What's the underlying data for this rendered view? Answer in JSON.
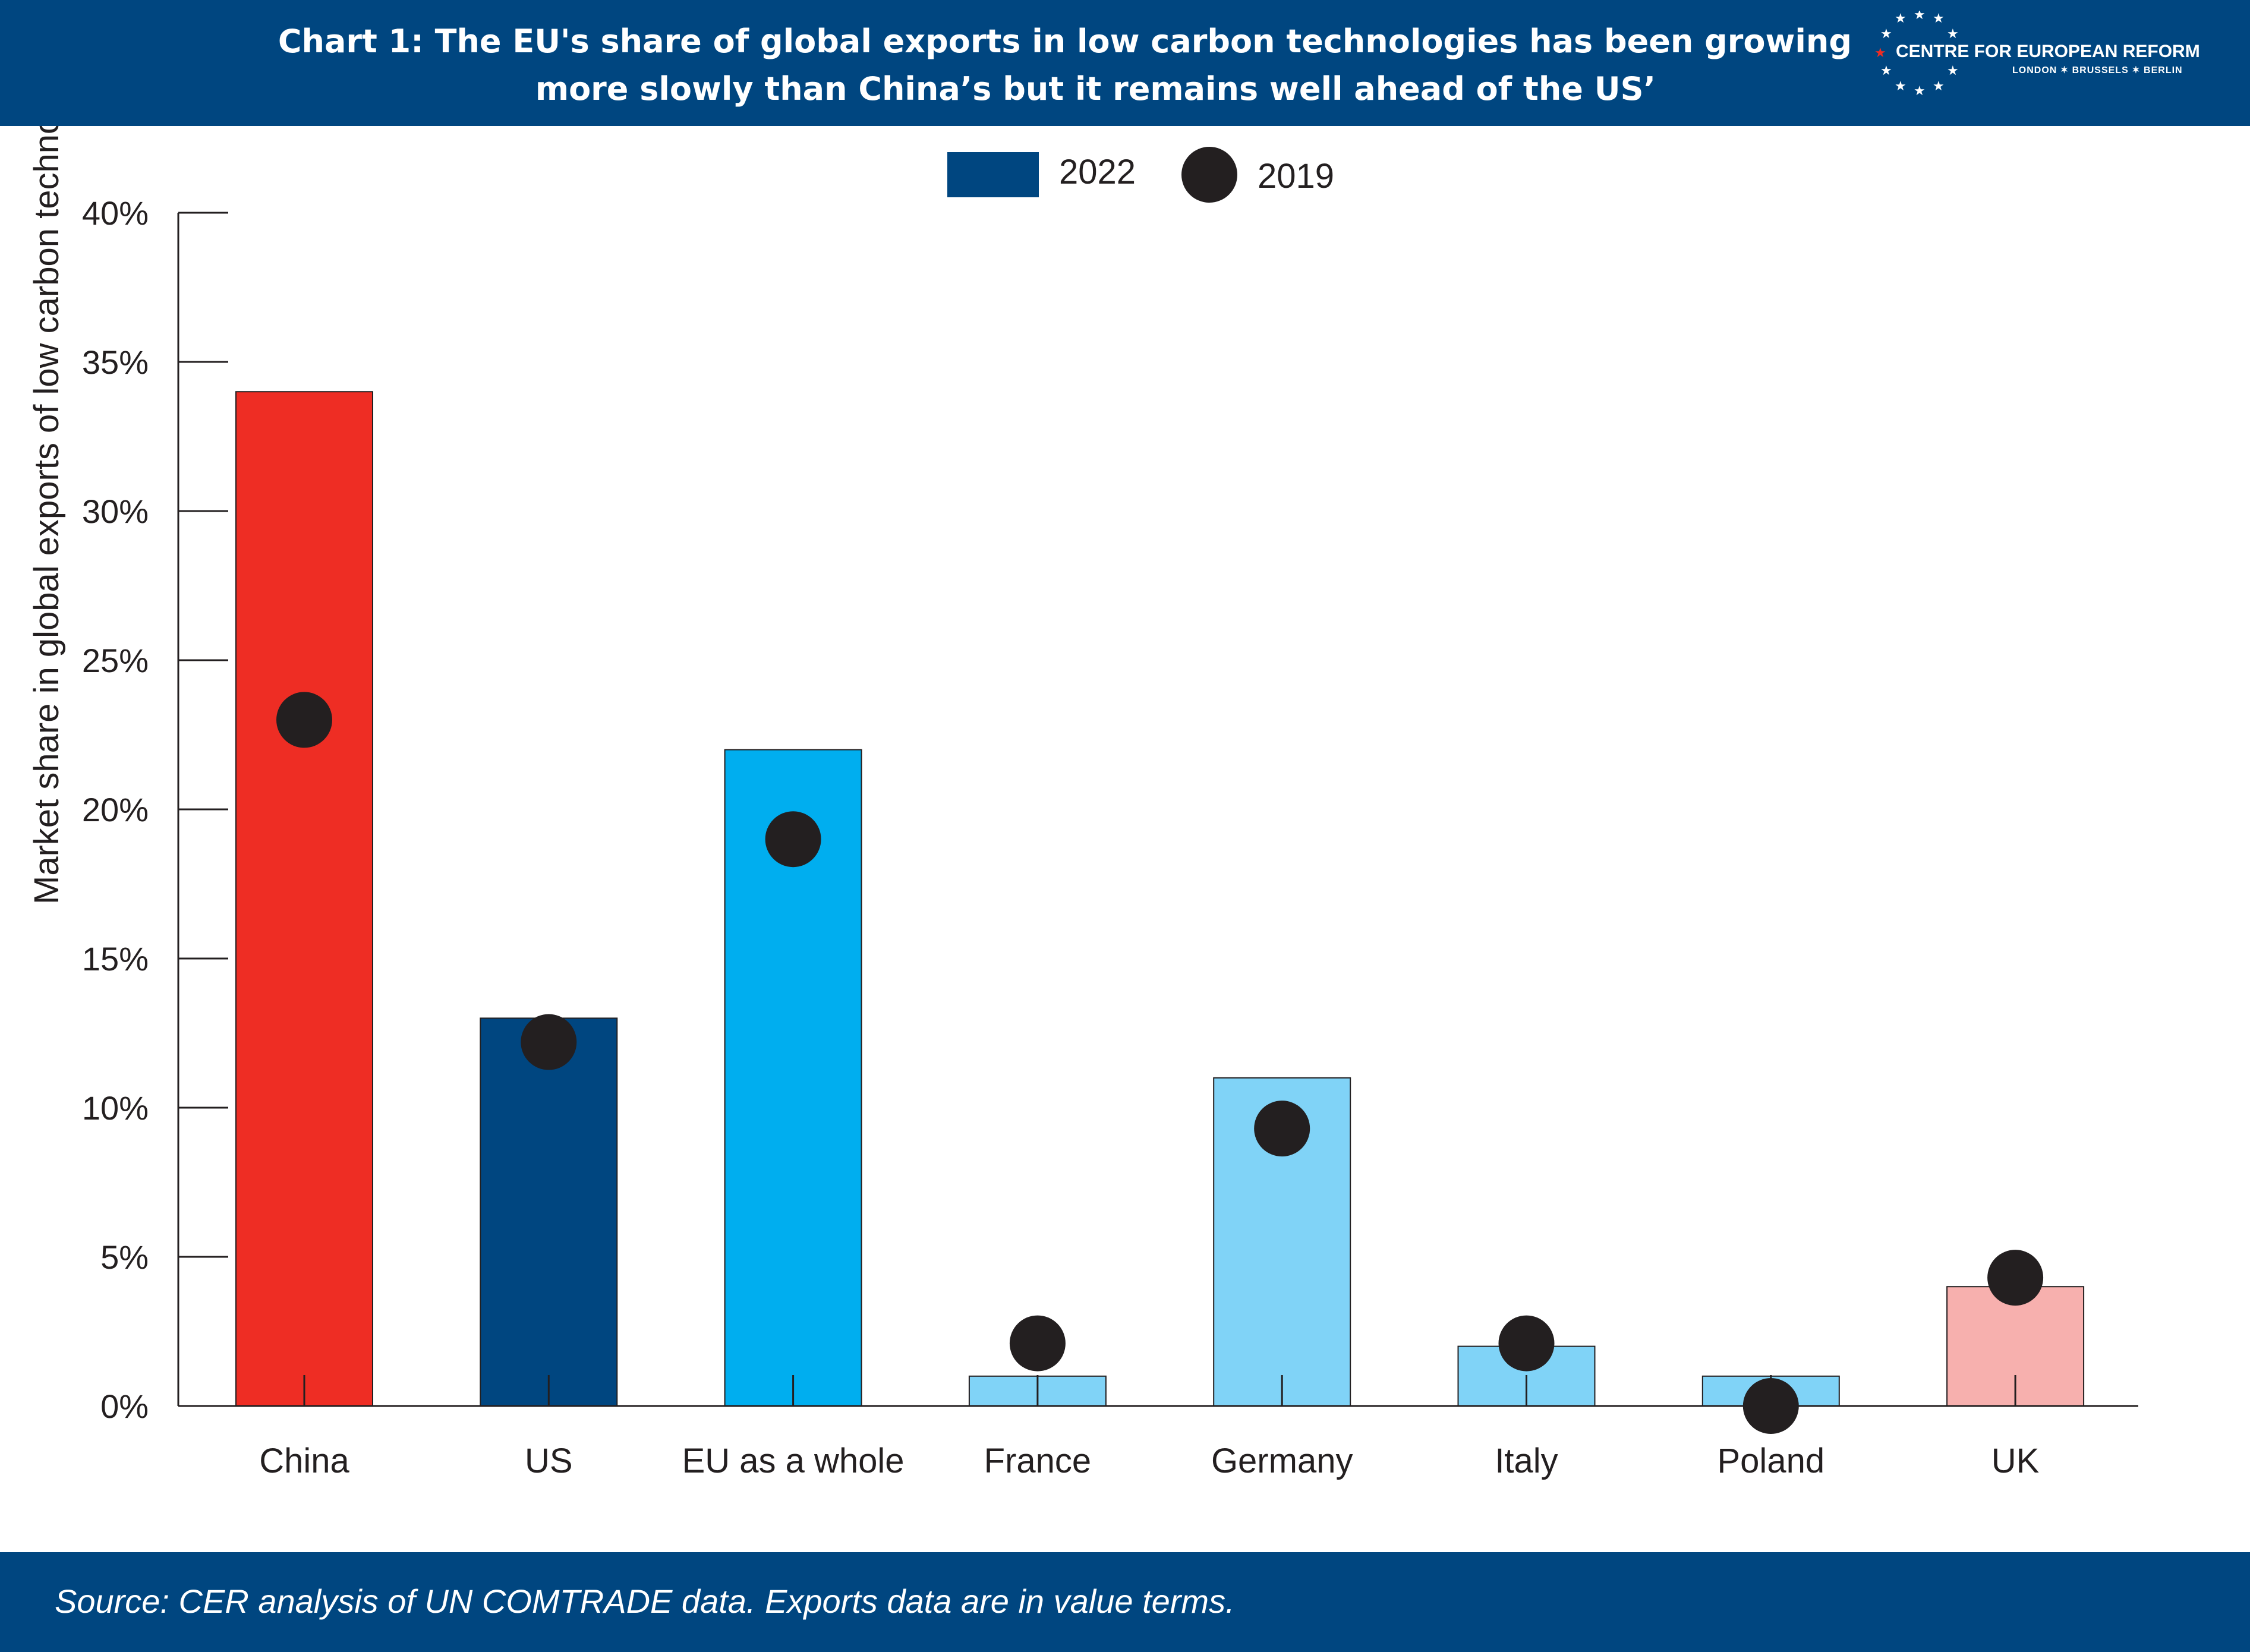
{
  "header": {
    "title_line1": "Chart 1: The EU's share of global exports in low carbon technologies has been growing",
    "title_line2": "more slowly than China’s but it remains well ahead of the US’",
    "logo_name": "CENTRE FOR EUROPEAN REFORM",
    "logo_cities": "LONDON ✶ BRUSSELS ✶ BERLIN"
  },
  "footer": {
    "source": "Source: CER analysis of UN COMTRADE data. Exports data are in value terms."
  },
  "colors": {
    "header_bg": "#004680",
    "china": "#ee2d24",
    "us": "#004680",
    "eu": "#00aeef",
    "member": "#80d3f7",
    "uk": "#f7b0ae",
    "dot": "#231f20"
  },
  "chart_data": {
    "type": "bar",
    "ylabel": "Market share in global exports of low carbon technologies",
    "xlabel": "",
    "ylim": [
      0,
      40
    ],
    "yticks": [
      "0%",
      "5%",
      "10%",
      "15%",
      "20%",
      "25%",
      "30%",
      "35%",
      "40%"
    ],
    "legend_position": "top-center",
    "categories": [
      "China",
      "US",
      "EU as a whole",
      "France",
      "Germany",
      "Italy",
      "Poland",
      "UK"
    ],
    "series": [
      {
        "name": "2022",
        "kind": "bar",
        "legend_color": "#004680",
        "values": [
          34,
          13,
          22,
          1,
          11,
          2,
          1,
          4
        ],
        "colors": [
          "#ee2d24",
          "#004680",
          "#00aeef",
          "#80d3f7",
          "#80d3f7",
          "#80d3f7",
          "#80d3f7",
          "#f7b0ae"
        ]
      },
      {
        "name": "2019",
        "kind": "dot",
        "legend_color": "#231f20",
        "values": [
          23,
          12.2,
          19,
          2.1,
          9.3,
          2.1,
          0,
          4.3
        ]
      }
    ]
  }
}
